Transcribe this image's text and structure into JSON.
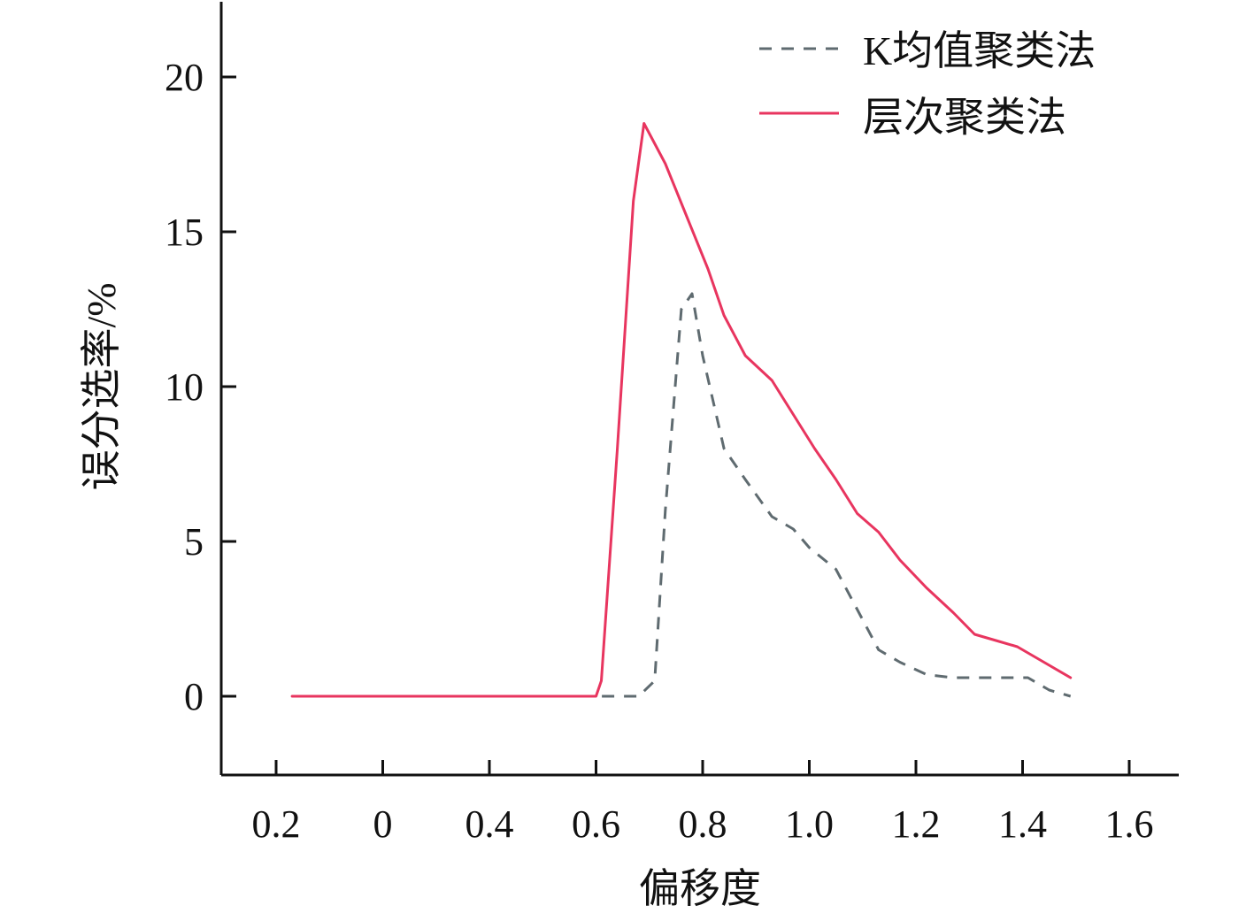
{
  "chart_data": {
    "type": "line",
    "title": "",
    "xlabel": "偏移度",
    "ylabel": "误分选率/%",
    "x_tick_labels": [
      "0.2",
      "0",
      "0.4",
      "0.6",
      "0.8",
      "1.0",
      "1.2",
      "1.4",
      "1.6"
    ],
    "y_ticks": [
      0,
      5,
      10,
      15,
      20
    ],
    "y_tick_labels": [
      "0",
      "5",
      "10",
      "15",
      "20"
    ],
    "ylim": [
      -2.5,
      22.5
    ],
    "grid": false,
    "legend_position": "top-right",
    "series": [
      {
        "name": "K均值聚类法",
        "style": "dashed",
        "color": "#5f6b70",
        "x": [
          0.03,
          0.6,
          0.68,
          0.71,
          0.73,
          0.76,
          0.78,
          0.8,
          0.84,
          0.88,
          0.93,
          0.97,
          1.0,
          1.05,
          1.09,
          1.13,
          1.17,
          1.22,
          1.27,
          1.32,
          1.37,
          1.41,
          1.45,
          1.49
        ],
        "y": [
          0,
          0,
          0,
          0.5,
          6,
          12.5,
          13,
          11,
          8,
          7,
          5.8,
          5.4,
          4.8,
          4.1,
          2.8,
          1.5,
          1.1,
          0.7,
          0.6,
          0.6,
          0.6,
          0.6,
          0.2,
          0
        ]
      },
      {
        "name": "层次聚类法",
        "style": "solid",
        "color": "#e8355f",
        "x": [
          0.03,
          0.6,
          0.61,
          0.64,
          0.67,
          0.69,
          0.73,
          0.77,
          0.81,
          0.84,
          0.88,
          0.93,
          0.97,
          1.01,
          1.05,
          1.09,
          1.13,
          1.17,
          1.22,
          1.27,
          1.31,
          1.35,
          1.39,
          1.43,
          1.49
        ],
        "y": [
          0,
          0,
          0.5,
          8,
          16,
          18.5,
          17.2,
          15.5,
          13.8,
          12.3,
          11,
          10.2,
          9.1,
          8,
          7,
          5.9,
          5.3,
          4.4,
          3.5,
          2.7,
          2,
          1.8,
          1.6,
          1.2,
          0.6
        ]
      }
    ]
  }
}
